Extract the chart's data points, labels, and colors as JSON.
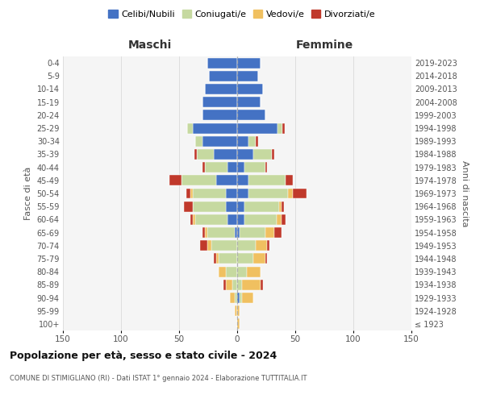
{
  "age_groups": [
    "100+",
    "95-99",
    "90-94",
    "85-89",
    "80-84",
    "75-79",
    "70-74",
    "65-69",
    "60-64",
    "55-59",
    "50-54",
    "45-49",
    "40-44",
    "35-39",
    "30-34",
    "25-29",
    "20-24",
    "15-19",
    "10-14",
    "5-9",
    "0-4"
  ],
  "birth_years": [
    "≤ 1923",
    "1924-1928",
    "1929-1933",
    "1934-1938",
    "1939-1943",
    "1944-1948",
    "1949-1953",
    "1954-1958",
    "1959-1963",
    "1964-1968",
    "1969-1973",
    "1974-1978",
    "1979-1983",
    "1984-1988",
    "1989-1993",
    "1994-1998",
    "1999-2003",
    "2004-2008",
    "2009-2013",
    "2014-2018",
    "2019-2023"
  ],
  "colors": {
    "celibi": "#4472c4",
    "coniugati": "#c6d9a0",
    "vedovi": "#f0c060",
    "divorziati": "#c0392b",
    "background": "#f5f5f5",
    "grid": "#cccccc",
    "dashed_line": "#aaaaaa"
  },
  "males": {
    "celibi": [
      0,
      0,
      0,
      0,
      0,
      0,
      0,
      2,
      8,
      10,
      10,
      18,
      8,
      20,
      30,
      38,
      30,
      30,
      28,
      24,
      26
    ],
    "coniugati": [
      0,
      0,
      2,
      4,
      10,
      16,
      22,
      24,
      28,
      28,
      28,
      30,
      20,
      15,
      6,
      5,
      0,
      0,
      0,
      0,
      0
    ],
    "vedovi": [
      0,
      2,
      4,
      6,
      6,
      2,
      4,
      2,
      2,
      0,
      2,
      0,
      0,
      0,
      0,
      0,
      0,
      0,
      0,
      0,
      0
    ],
    "divorziati": [
      0,
      0,
      0,
      2,
      0,
      2,
      6,
      2,
      2,
      8,
      4,
      10,
      2,
      2,
      0,
      0,
      0,
      0,
      0,
      0,
      0
    ]
  },
  "females": {
    "nubili": [
      0,
      0,
      2,
      0,
      0,
      0,
      0,
      2,
      6,
      6,
      10,
      10,
      6,
      14,
      10,
      35,
      24,
      20,
      22,
      18,
      20
    ],
    "coniugate": [
      0,
      0,
      2,
      4,
      8,
      14,
      16,
      22,
      28,
      30,
      34,
      32,
      18,
      16,
      6,
      4,
      0,
      0,
      0,
      0,
      0
    ],
    "vedove": [
      2,
      2,
      10,
      16,
      12,
      10,
      10,
      8,
      4,
      2,
      4,
      0,
      0,
      0,
      0,
      0,
      0,
      0,
      0,
      0,
      0
    ],
    "divorziate": [
      0,
      0,
      0,
      2,
      0,
      2,
      2,
      6,
      4,
      2,
      12,
      6,
      2,
      2,
      2,
      2,
      0,
      0,
      0,
      0,
      0
    ]
  },
  "title": "Popolazione per età, sesso e stato civile - 2024",
  "subtitle": "COMUNE DI STIMIGLIANO (RI) - Dati ISTAT 1° gennaio 2024 - Elaborazione TUTTITALIA.IT",
  "xlabel_left": "Maschi",
  "xlabel_right": "Femmine",
  "ylabel_left": "Fasce di età",
  "ylabel_right": "Anni di nascita",
  "xlim": 150,
  "legend_labels": [
    "Celibi/Nubili",
    "Coniugati/e",
    "Vedovi/e",
    "Divorziati/e"
  ]
}
